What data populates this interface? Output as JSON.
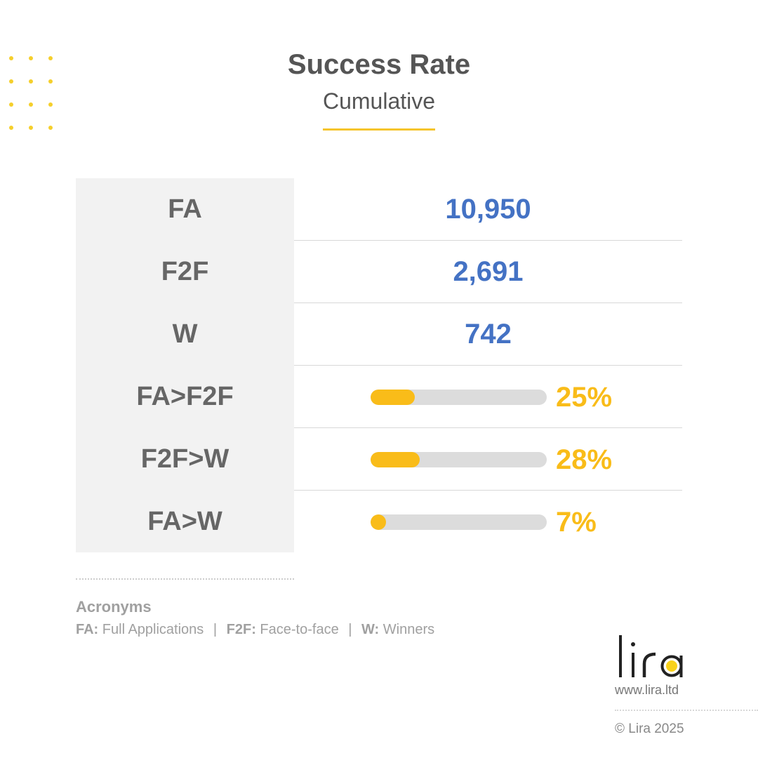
{
  "header": {
    "title": "Success Rate",
    "subtitle": "Cumulative"
  },
  "colors": {
    "accent": "#f9bc19",
    "value_blue": "#4472c4",
    "label_grey": "#666666",
    "track": "#dcdcdc"
  },
  "rows": [
    {
      "label": "FA",
      "type": "number",
      "value": "10,950"
    },
    {
      "label": "F2F",
      "type": "number",
      "value": "2,691"
    },
    {
      "label": "W",
      "type": "number",
      "value": "742"
    },
    {
      "label": "FA>F2F",
      "type": "percent",
      "percent": 25,
      "percent_label": "25%"
    },
    {
      "label": "F2F>W",
      "type": "percent",
      "percent": 28,
      "percent_label": "28%"
    },
    {
      "label": "FA>W",
      "type": "percent",
      "percent": 7,
      "percent_label": "7%"
    }
  ],
  "acronyms": {
    "heading": "Acronyms",
    "items": [
      {
        "abbr": "FA:",
        "meaning": "Full Applications"
      },
      {
        "abbr": "F2F:",
        "meaning": "Face-to-face"
      },
      {
        "abbr": "W:",
        "meaning": "Winners"
      }
    ],
    "separator": "|"
  },
  "brand": {
    "logo_text": "lira",
    "url": "www.lira.ltd",
    "copyright": "© Lira 2025"
  }
}
